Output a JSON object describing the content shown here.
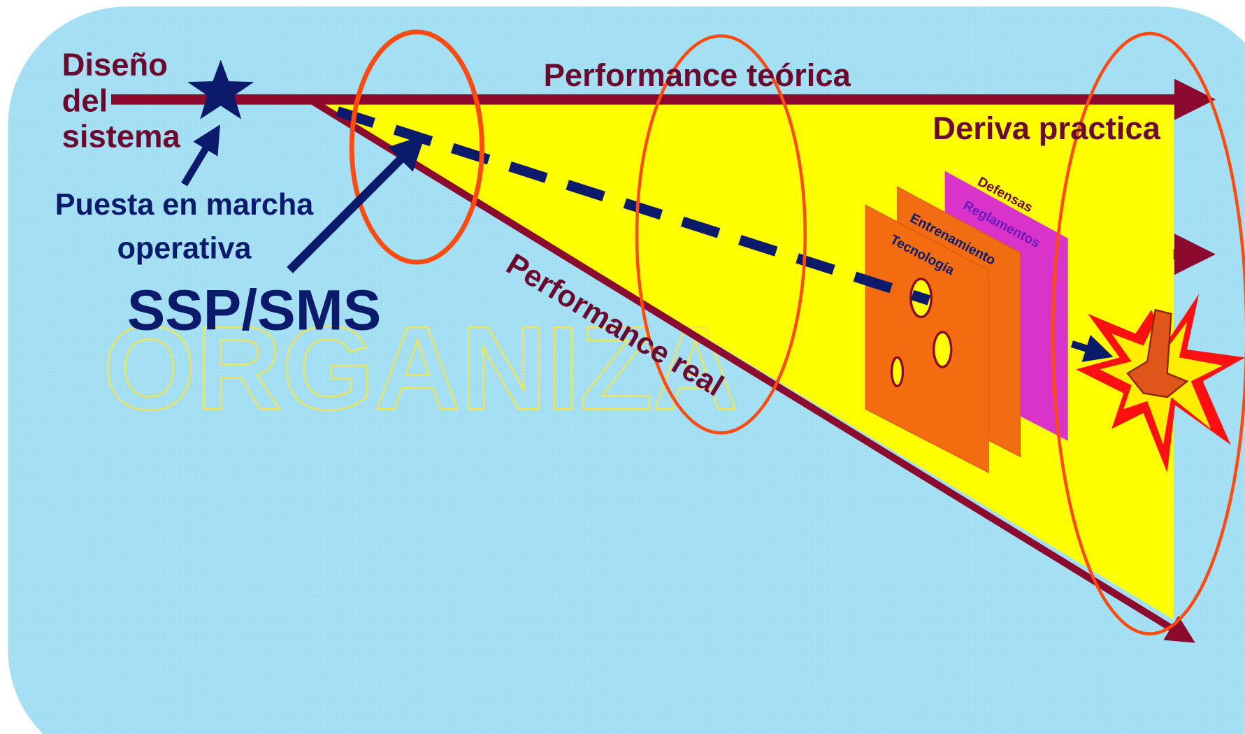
{
  "design_label": [
    "Diseño",
    "del",
    "sistema"
  ],
  "launch_label": [
    "Puesta en marcha",
    "operativa"
  ],
  "ssp_label": "SSP/SMS",
  "background_word": "ORGANIZA",
  "theoretical_label": "Performance teórica",
  "drift_label": "Deriva practica",
  "real_label": "Performance real",
  "layers": [
    "Defensas",
    "Reglamentos",
    "Entrenamiento",
    "Tecnología"
  ]
}
